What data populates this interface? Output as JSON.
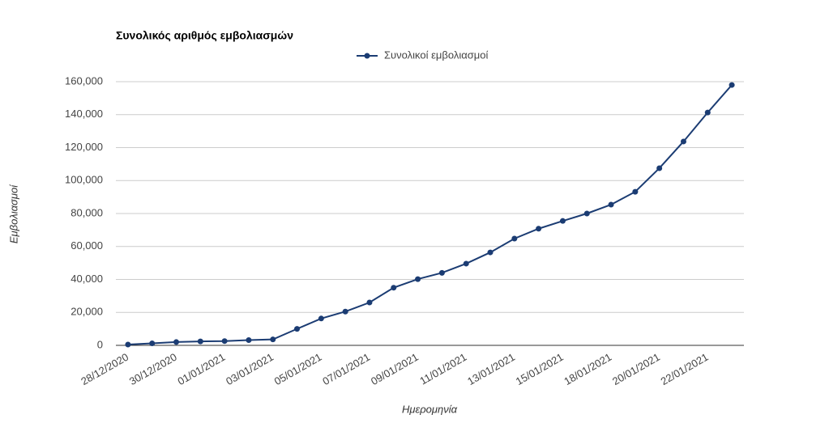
{
  "chart_data": {
    "type": "line",
    "title": "Συνολικός αριθμός εμβολιασμών",
    "x_label": "Ημερομηνία",
    "y_label": "Εμβολιασμοί",
    "categories": [
      "28/12/2020",
      null,
      "30/12/2020",
      null,
      "01/01/2021",
      null,
      "03/01/2021",
      null,
      "05/01/2021",
      null,
      "07/01/2021",
      null,
      "09/01/2021",
      null,
      "11/01/2021",
      null,
      "13/01/2021",
      null,
      "15/01/2021",
      null,
      "18/01/2021",
      null,
      "20/01/2021",
      null,
      "22/01/2021",
      null
    ],
    "series": [
      {
        "name": "Συνολικοί εμβολιασμοί",
        "color": "#1b3c73",
        "values": [
          500,
          1200,
          2000,
          2400,
          2600,
          3200,
          3600,
          10000,
          16300,
          20500,
          26000,
          35000,
          40200,
          44000,
          49600,
          56400,
          64800,
          70800,
          75500,
          80000,
          85400,
          93200,
          107500,
          123700,
          141300,
          158000
        ]
      }
    ],
    "ylim": [
      0,
      160000
    ],
    "yticks": [
      {
        "value": 0,
        "label": "0"
      },
      {
        "value": 20000,
        "label": "20,000"
      },
      {
        "value": 40000,
        "label": "40,000"
      },
      {
        "value": 60000,
        "label": "60,000"
      },
      {
        "value": 80000,
        "label": "80,000"
      },
      {
        "value": 100000,
        "label": "100,000"
      },
      {
        "value": 120000,
        "label": "120,000"
      },
      {
        "value": 140000,
        "label": "140,000"
      },
      {
        "value": 160000,
        "label": "160,000"
      }
    ],
    "grid": true
  }
}
